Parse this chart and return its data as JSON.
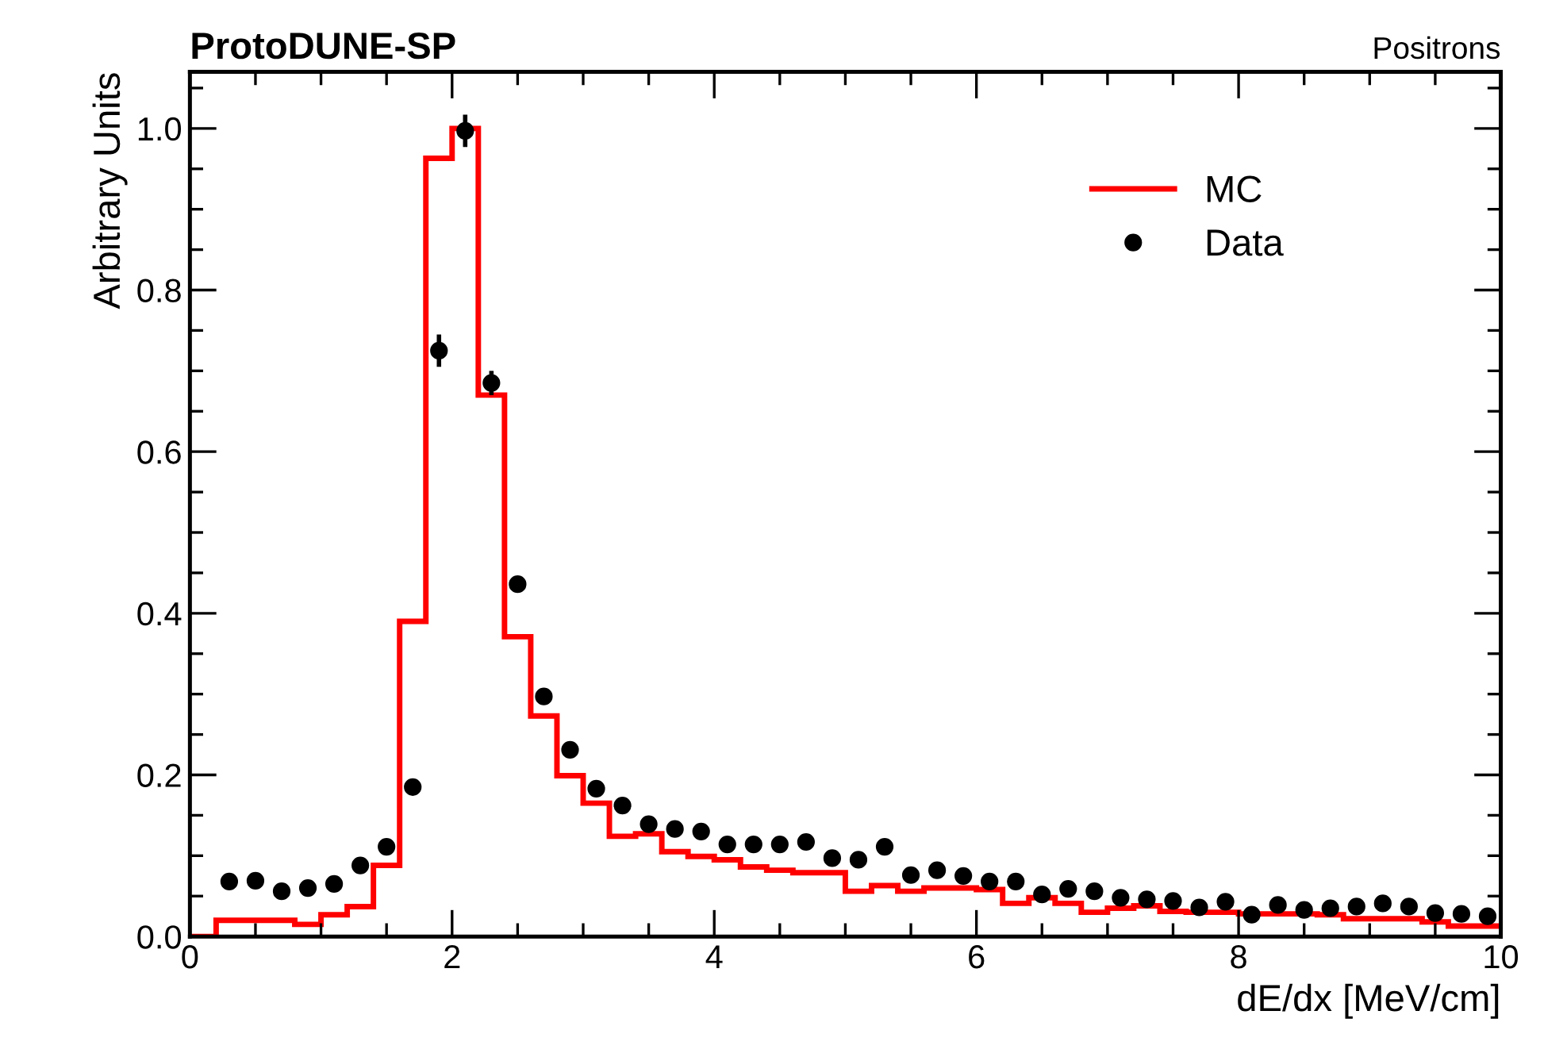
{
  "chart_data": {
    "type": "histogram",
    "title": "ProtoDUNE-SP",
    "subtitle": "Positrons",
    "xlabel": "dE/dx [MeV/cm]",
    "ylabel": "Arbitrary Units",
    "bins": [
      0,
      0.2,
      0.4,
      0.6,
      0.8,
      1.0,
      1.2,
      1.4,
      1.6,
      1.8,
      2.0,
      2.2,
      2.4,
      2.6,
      2.8,
      3.0,
      3.2,
      3.4,
      3.6,
      3.8,
      4.0,
      4.2,
      4.4,
      4.6,
      4.8,
      5.0,
      5.2,
      5.4,
      5.6,
      5.8,
      6.0,
      6.2,
      6.4,
      6.6,
      6.8,
      7.0,
      7.2,
      7.4,
      7.6,
      7.8,
      8.0,
      8.2,
      8.4,
      8.6,
      8.8,
      9.0,
      9.2,
      9.4,
      9.6,
      9.8,
      10.0
    ],
    "series": [
      {
        "name": "MC",
        "color": "#ff0000",
        "values": [
          0.0,
          0.02,
          0.02,
          0.02,
          0.015,
          0.027,
          0.037,
          0.088,
          0.39,
          0.963,
          1.0,
          0.67,
          0.371,
          0.273,
          0.199,
          0.165,
          0.124,
          0.127,
          0.105,
          0.099,
          0.095,
          0.086,
          0.082,
          0.079,
          0.079,
          0.056,
          0.063,
          0.056,
          0.06,
          0.06,
          0.058,
          0.041,
          0.048,
          0.041,
          0.03,
          0.035,
          0.038,
          0.031,
          0.03,
          0.03,
          0.028,
          0.028,
          0.028,
          0.027,
          0.022,
          0.022,
          0.022,
          0.018,
          0.013,
          0.013
        ]
      },
      {
        "name": "Data",
        "type": "scatter",
        "color": "#000000",
        "marker": "circle",
        "x": [
          0.3,
          0.5,
          0.7,
          0.9,
          1.1,
          1.3,
          1.5,
          1.7,
          1.9,
          2.1,
          2.3,
          2.5,
          2.7,
          2.9,
          3.1,
          3.3,
          3.5,
          3.7,
          3.9,
          4.1,
          4.3,
          4.5,
          4.7,
          4.9,
          5.1,
          5.3,
          5.5,
          5.7,
          5.9,
          6.1,
          6.3,
          6.5,
          6.7,
          6.9,
          7.1,
          7.3,
          7.5,
          7.7,
          7.9,
          8.1,
          8.3,
          8.5,
          8.7,
          8.9,
          9.1,
          9.3,
          9.5,
          9.7,
          9.9
        ],
        "values": [
          0.068,
          0.069,
          0.056,
          0.06,
          0.065,
          0.088,
          0.111,
          0.185,
          0.725,
          0.997,
          0.685,
          0.436,
          0.297,
          0.231,
          0.183,
          0.162,
          0.139,
          0.133,
          0.13,
          0.114,
          0.114,
          0.114,
          0.117,
          0.097,
          0.095,
          0.111,
          0.076,
          0.082,
          0.075,
          0.068,
          0.068,
          0.052,
          0.059,
          0.056,
          0.048,
          0.046,
          0.044,
          0.036,
          0.043,
          0.027,
          0.039,
          0.033,
          0.035,
          0.037,
          0.041,
          0.037,
          0.029,
          0.028,
          0.025
        ],
        "errors": [
          null,
          null,
          null,
          null,
          null,
          null,
          null,
          null,
          0.02,
          0.02,
          0.015,
          0.01,
          null,
          null,
          null,
          null,
          null,
          null,
          null,
          null,
          null,
          null,
          null,
          null,
          null,
          null,
          null,
          null,
          null,
          null,
          null,
          null,
          null,
          null,
          null,
          null,
          null,
          null,
          null,
          null,
          null,
          null,
          null,
          null,
          null,
          null,
          null,
          null,
          null
        ]
      }
    ],
    "xlim": [
      0,
      10
    ],
    "ylim": [
      0,
      1.07
    ],
    "xticks": [
      0,
      2,
      4,
      6,
      8,
      10
    ],
    "yticks": [
      {
        "value": 0,
        "label": "0.0"
      },
      0.2,
      0.4,
      0.6,
      0.8,
      {
        "value": 1,
        "label": "1.0"
      }
    ],
    "legend": "top right"
  }
}
